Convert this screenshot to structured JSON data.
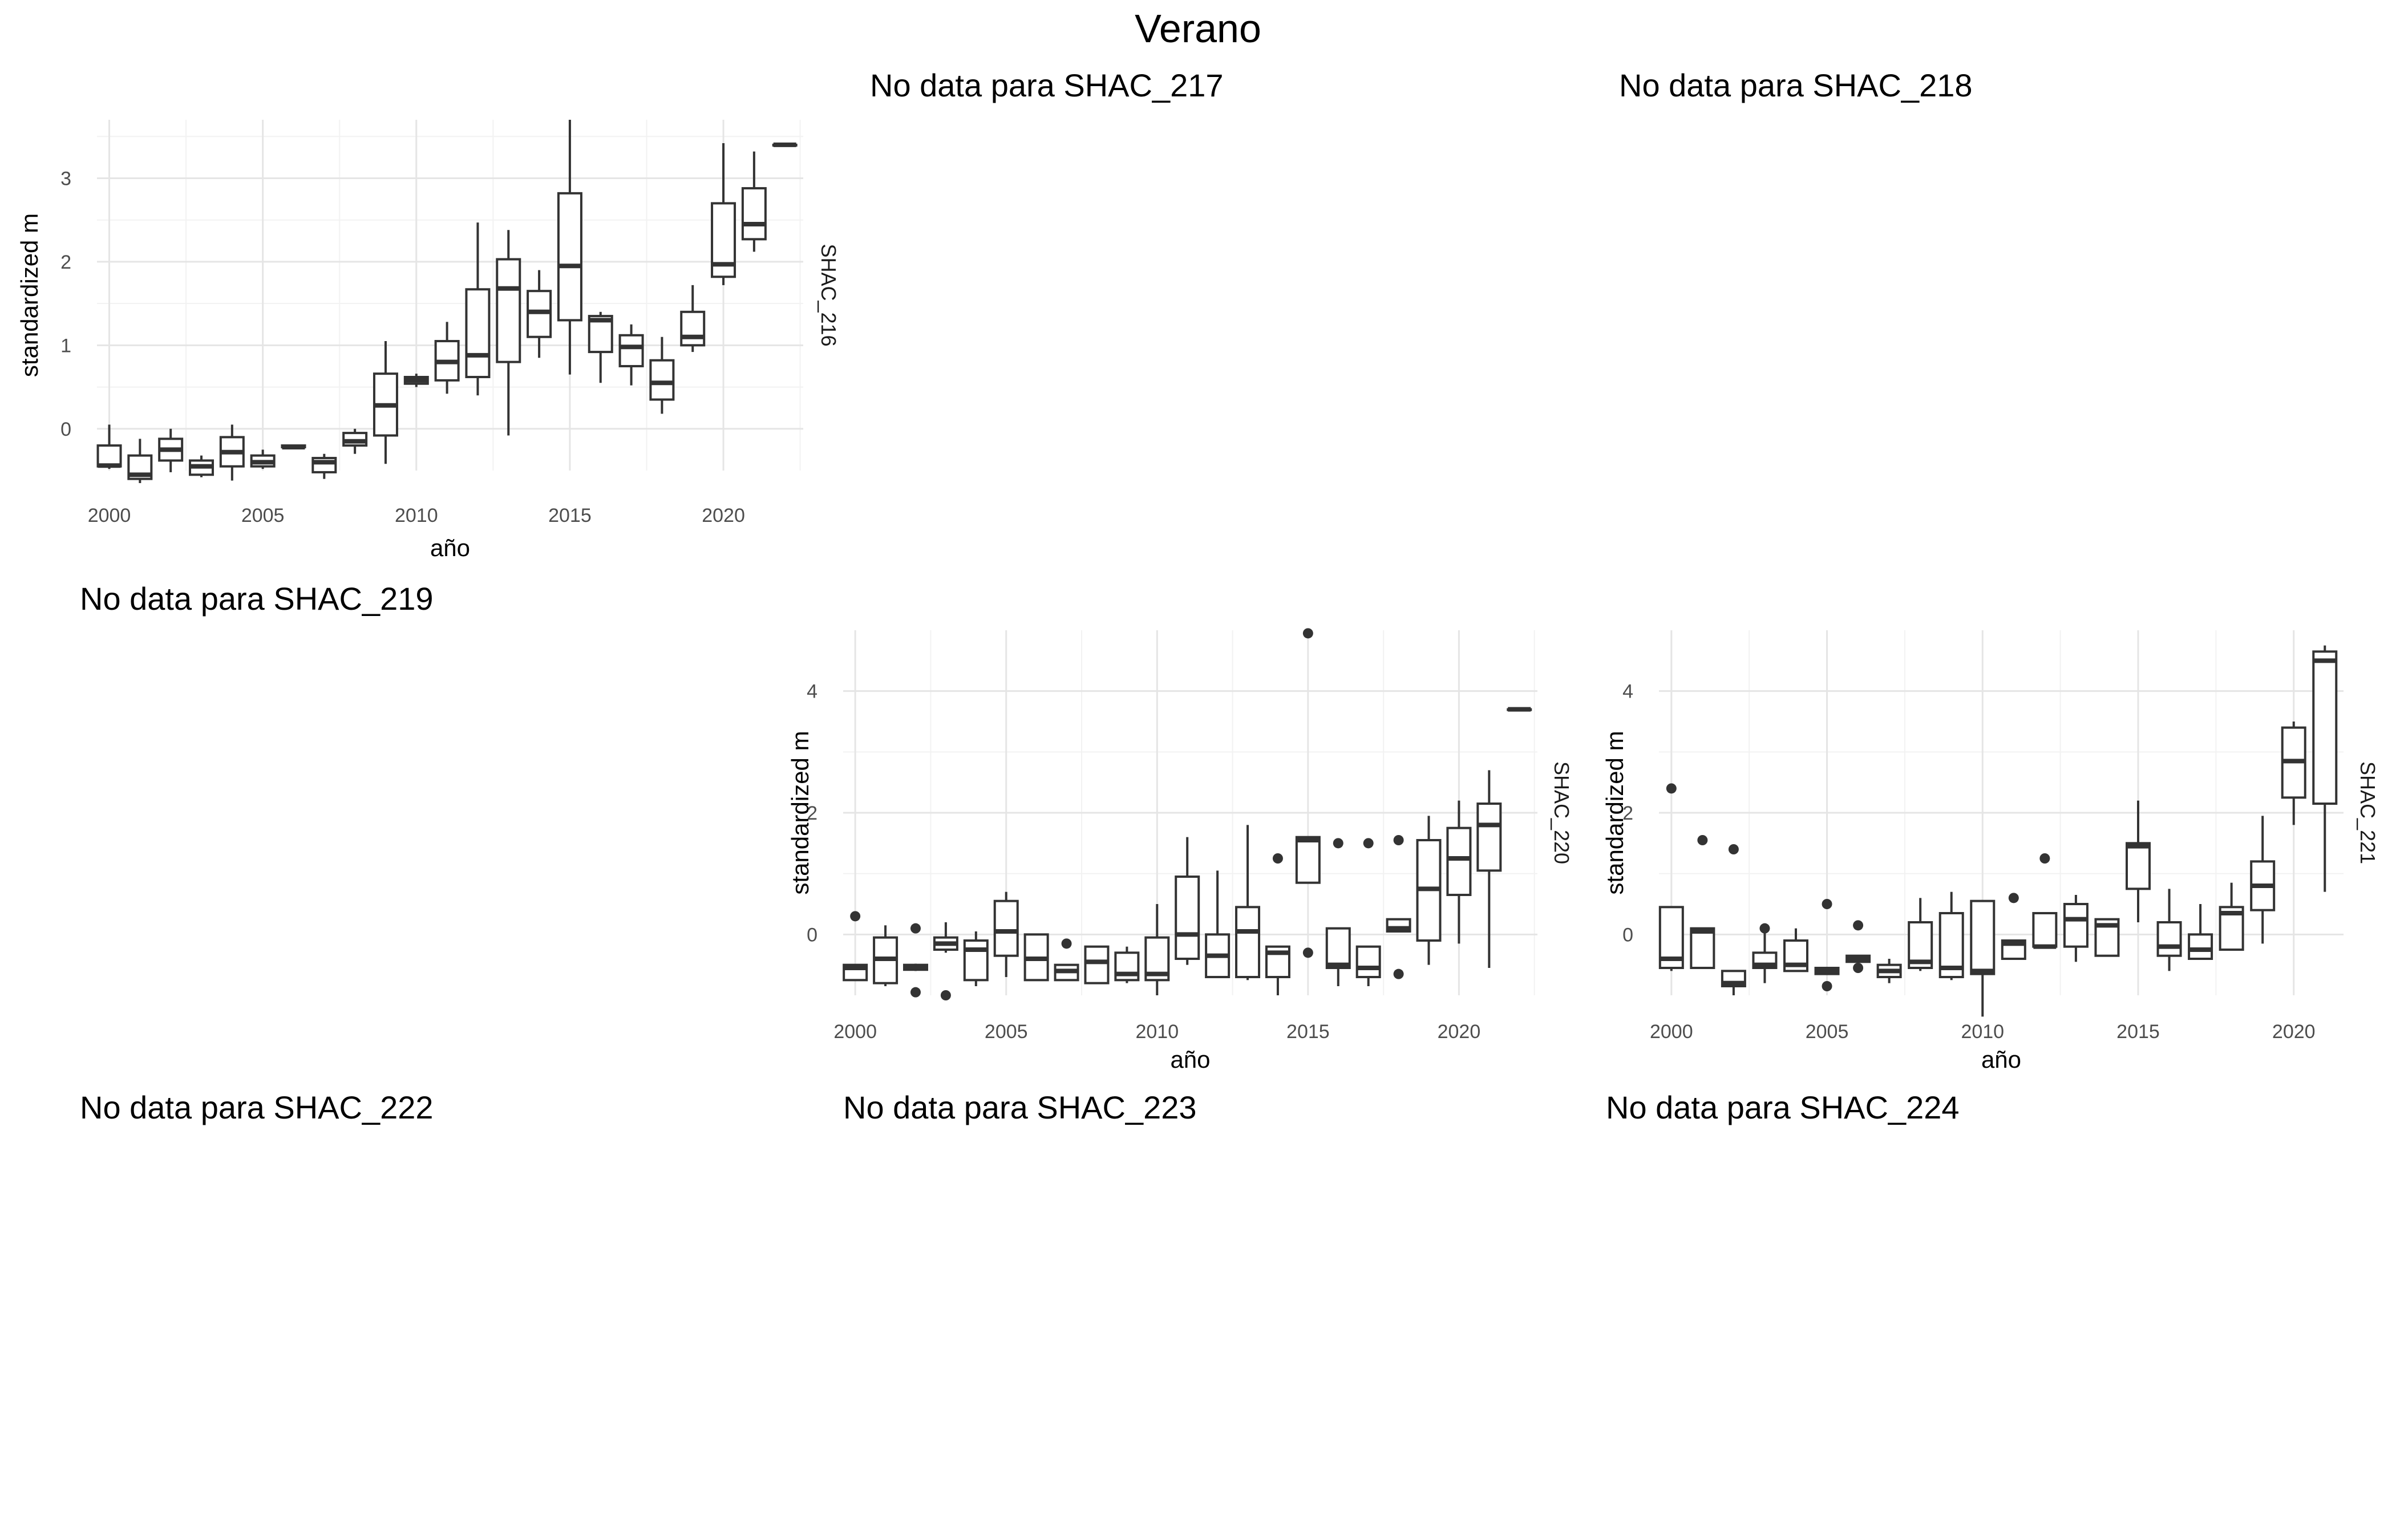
{
  "title": "Verano",
  "chart_data": [
    {
      "type": "boxplot",
      "strip": "SHAC_216",
      "xlabel": "año",
      "ylabel": "standardized m",
      "xlim": [
        1999.6,
        2022.6
      ],
      "ylim": [
        -0.5,
        3.7
      ],
      "xticks": [
        2000,
        2005,
        2010,
        2015,
        2020
      ],
      "yticks": [
        0,
        1,
        2,
        3
      ],
      "grid": true,
      "boxes": [
        {
          "x": 2000,
          "lo": -0.48,
          "q1": -0.45,
          "med": -0.44,
          "q3": -0.2,
          "hi": 0.05
        },
        {
          "x": 2001,
          "lo": -0.65,
          "q1": -0.6,
          "med": -0.55,
          "q3": -0.32,
          "hi": -0.12
        },
        {
          "x": 2002,
          "lo": -0.52,
          "q1": -0.38,
          "med": -0.25,
          "q3": -0.12,
          "hi": 0.0
        },
        {
          "x": 2003,
          "lo": -0.58,
          "q1": -0.55,
          "med": -0.45,
          "q3": -0.38,
          "hi": -0.32
        },
        {
          "x": 2004,
          "lo": -0.62,
          "q1": -0.45,
          "med": -0.28,
          "q3": -0.1,
          "hi": 0.05
        },
        {
          "x": 2005,
          "lo": -0.48,
          "q1": -0.45,
          "med": -0.4,
          "q3": -0.32,
          "hi": -0.25
        },
        {
          "x": 2006,
          "lo": -0.22,
          "q1": -0.22,
          "med": -0.22,
          "q3": -0.2,
          "hi": -0.2
        },
        {
          "x": 2007,
          "lo": -0.6,
          "q1": -0.52,
          "med": -0.4,
          "q3": -0.35,
          "hi": -0.3
        },
        {
          "x": 2008,
          "lo": -0.3,
          "q1": -0.2,
          "med": -0.15,
          "q3": -0.05,
          "hi": 0.0
        },
        {
          "x": 2009,
          "lo": -0.42,
          "q1": -0.08,
          "med": 0.28,
          "q3": 0.66,
          "hi": 1.05
        },
        {
          "x": 2010,
          "lo": 0.5,
          "q1": 0.54,
          "med": 0.58,
          "q3": 0.62,
          "hi": 0.66
        },
        {
          "x": 2011,
          "lo": 0.42,
          "q1": 0.58,
          "med": 0.8,
          "q3": 1.05,
          "hi": 1.28
        },
        {
          "x": 2012,
          "lo": 0.4,
          "q1": 0.62,
          "med": 0.88,
          "q3": 1.67,
          "hi": 2.47
        },
        {
          "x": 2013,
          "lo": -0.08,
          "q1": 0.8,
          "med": 1.68,
          "q3": 2.03,
          "hi": 2.38
        },
        {
          "x": 2014,
          "lo": 0.85,
          "q1": 1.1,
          "med": 1.4,
          "q3": 1.65,
          "hi": 1.9
        },
        {
          "x": 2015,
          "lo": 0.65,
          "q1": 1.3,
          "med": 1.95,
          "q3": 2.82,
          "hi": 3.7
        },
        {
          "x": 2016,
          "lo": 0.55,
          "q1": 0.92,
          "med": 1.3,
          "q3": 1.35,
          "hi": 1.4
        },
        {
          "x": 2017,
          "lo": 0.52,
          "q1": 0.75,
          "med": 0.98,
          "q3": 1.12,
          "hi": 1.25
        },
        {
          "x": 2018,
          "lo": 0.18,
          "q1": 0.35,
          "med": 0.55,
          "q3": 0.82,
          "hi": 1.1
        },
        {
          "x": 2019,
          "lo": 0.92,
          "q1": 1.0,
          "med": 1.1,
          "q3": 1.4,
          "hi": 1.72
        },
        {
          "x": 2020,
          "lo": 1.72,
          "q1": 1.82,
          "med": 1.97,
          "q3": 2.7,
          "hi": 3.42
        },
        {
          "x": 2021,
          "lo": 2.12,
          "q1": 2.27,
          "med": 2.45,
          "q3": 2.88,
          "hi": 3.32
        },
        {
          "x": 2022,
          "lo": 3.4,
          "q1": 3.4,
          "med": 3.4,
          "q3": 3.4,
          "hi": 3.4
        }
      ],
      "outliers": []
    },
    {
      "type": "boxplot",
      "strip": "SHAC_220",
      "xlabel": "año",
      "ylabel": "standardized m",
      "xlim": [
        1999.6,
        2022.6
      ],
      "ylim": [
        -1.0,
        5.0
      ],
      "xticks": [
        2000,
        2005,
        2010,
        2015,
        2020
      ],
      "yticks": [
        0,
        2,
        4
      ],
      "grid": true,
      "boxes": [
        {
          "x": 2000,
          "lo": -0.75,
          "q1": -0.75,
          "med": -0.55,
          "q3": -0.5,
          "hi": -0.5
        },
        {
          "x": 2001,
          "lo": -0.85,
          "q1": -0.8,
          "med": -0.4,
          "q3": -0.05,
          "hi": 0.15
        },
        {
          "x": 2002,
          "lo": -0.6,
          "q1": -0.58,
          "med": -0.55,
          "q3": -0.5,
          "hi": -0.48
        },
        {
          "x": 2003,
          "lo": -0.3,
          "q1": -0.25,
          "med": -0.15,
          "q3": -0.05,
          "hi": 0.2
        },
        {
          "x": 2004,
          "lo": -0.85,
          "q1": -0.75,
          "med": -0.25,
          "q3": -0.1,
          "hi": 0.05
        },
        {
          "x": 2005,
          "lo": -0.7,
          "q1": -0.35,
          "med": 0.05,
          "q3": 0.55,
          "hi": 0.7
        },
        {
          "x": 2006,
          "lo": -0.75,
          "q1": -0.75,
          "med": -0.4,
          "q3": 0.0,
          "hi": 0.0
        },
        {
          "x": 2007,
          "lo": -0.75,
          "q1": -0.75,
          "med": -0.6,
          "q3": -0.5,
          "hi": -0.5
        },
        {
          "x": 2008,
          "lo": -0.8,
          "q1": -0.8,
          "med": -0.45,
          "q3": -0.2,
          "hi": -0.2
        },
        {
          "x": 2009,
          "lo": -0.8,
          "q1": -0.75,
          "med": -0.65,
          "q3": -0.3,
          "hi": -0.2
        },
        {
          "x": 2010,
          "lo": -1.0,
          "q1": -0.75,
          "med": -0.65,
          "q3": -0.05,
          "hi": 0.5
        },
        {
          "x": 2011,
          "lo": -0.5,
          "q1": -0.4,
          "med": 0.0,
          "q3": 0.95,
          "hi": 1.6
        },
        {
          "x": 2012,
          "lo": -0.7,
          "q1": -0.7,
          "med": -0.35,
          "q3": 0.0,
          "hi": 1.05
        },
        {
          "x": 2013,
          "lo": -0.75,
          "q1": -0.7,
          "med": 0.05,
          "q3": 0.45,
          "hi": 1.8
        },
        {
          "x": 2014,
          "lo": -1.0,
          "q1": -0.7,
          "med": -0.3,
          "q3": -0.2,
          "hi": -0.2
        },
        {
          "x": 2015,
          "lo": 0.85,
          "q1": 0.85,
          "med": 1.55,
          "q3": 1.6,
          "hi": 1.6
        },
        {
          "x": 2016,
          "lo": -0.85,
          "q1": -0.55,
          "med": -0.5,
          "q3": 0.1,
          "hi": 0.1
        },
        {
          "x": 2017,
          "lo": -0.85,
          "q1": -0.7,
          "med": -0.55,
          "q3": -0.2,
          "hi": -0.2
        },
        {
          "x": 2018,
          "lo": 0.05,
          "q1": 0.05,
          "med": 0.1,
          "q3": 0.25,
          "hi": 0.25
        },
        {
          "x": 2019,
          "lo": -0.5,
          "q1": -0.1,
          "med": 0.75,
          "q3": 1.55,
          "hi": 1.95
        },
        {
          "x": 2020,
          "lo": -0.15,
          "q1": 0.65,
          "med": 1.25,
          "q3": 1.75,
          "hi": 2.2
        },
        {
          "x": 2021,
          "lo": -0.55,
          "q1": 1.05,
          "med": 1.8,
          "q3": 2.15,
          "hi": 2.7
        },
        {
          "x": 2022,
          "lo": 3.7,
          "q1": 3.7,
          "med": 3.7,
          "q3": 3.7,
          "hi": 3.7
        }
      ],
      "outliers": [
        {
          "x": 2000,
          "y": 0.3
        },
        {
          "x": 2002,
          "y": 0.1
        },
        {
          "x": 2002,
          "y": -0.95
        },
        {
          "x": 2003,
          "y": -1.0
        },
        {
          "x": 2007,
          "y": -0.15
        },
        {
          "x": 2014,
          "y": 1.25
        },
        {
          "x": 2015,
          "y": 4.95
        },
        {
          "x": 2015,
          "y": -0.3
        },
        {
          "x": 2016,
          "y": 1.5
        },
        {
          "x": 2017,
          "y": 1.5
        },
        {
          "x": 2018,
          "y": 1.55
        },
        {
          "x": 2018,
          "y": -0.65
        }
      ]
    },
    {
      "type": "boxplot",
      "strip": "SHAC_221",
      "xlabel": "año",
      "ylabel": "standardized m",
      "xlim": [
        1999.6,
        2021.6
      ],
      "ylim": [
        -1.0,
        5.0
      ],
      "xticks": [
        2000,
        2005,
        2010,
        2015,
        2020
      ],
      "yticks": [
        0,
        2,
        4
      ],
      "grid": true,
      "boxes": [
        {
          "x": 2000,
          "lo": -0.6,
          "q1": -0.55,
          "med": -0.4,
          "q3": 0.45,
          "hi": 0.45
        },
        {
          "x": 2001,
          "lo": -0.55,
          "q1": -0.55,
          "med": 0.05,
          "q3": 0.1,
          "hi": 0.1
        },
        {
          "x": 2002,
          "lo": -1.0,
          "q1": -0.85,
          "med": -0.8,
          "q3": -0.6,
          "hi": -0.6
        },
        {
          "x": 2003,
          "lo": -0.8,
          "q1": -0.55,
          "med": -0.5,
          "q3": -0.3,
          "hi": 0.05
        },
        {
          "x": 2004,
          "lo": -0.6,
          "q1": -0.6,
          "med": -0.5,
          "q3": -0.1,
          "hi": 0.1
        },
        {
          "x": 2005,
          "lo": -0.65,
          "q1": -0.65,
          "med": -0.6,
          "q3": -0.55,
          "hi": -0.55
        },
        {
          "x": 2006,
          "lo": -0.45,
          "q1": -0.45,
          "med": -0.4,
          "q3": -0.35,
          "hi": -0.35
        },
        {
          "x": 2007,
          "lo": -0.8,
          "q1": -0.7,
          "med": -0.6,
          "q3": -0.5,
          "hi": -0.4
        },
        {
          "x": 2008,
          "lo": -0.6,
          "q1": -0.55,
          "med": -0.45,
          "q3": 0.2,
          "hi": 0.6
        },
        {
          "x": 2009,
          "lo": -0.75,
          "q1": -0.7,
          "med": -0.55,
          "q3": 0.35,
          "hi": 0.7
        },
        {
          "x": 2010,
          "lo": -1.35,
          "q1": -0.65,
          "med": -0.6,
          "q3": 0.55,
          "hi": 0.55
        },
        {
          "x": 2011,
          "lo": -0.4,
          "q1": -0.4,
          "med": -0.15,
          "q3": -0.1,
          "hi": -0.1
        },
        {
          "x": 2012,
          "lo": -0.2,
          "q1": -0.2,
          "med": -0.2,
          "q3": 0.35,
          "hi": 0.35
        },
        {
          "x": 2013,
          "lo": -0.45,
          "q1": -0.2,
          "med": 0.25,
          "q3": 0.5,
          "hi": 0.65
        },
        {
          "x": 2014,
          "lo": -0.35,
          "q1": -0.35,
          "med": 0.15,
          "q3": 0.25,
          "hi": 0.25
        },
        {
          "x": 2015,
          "lo": 0.2,
          "q1": 0.75,
          "med": 1.45,
          "q3": 1.5,
          "hi": 2.2
        },
        {
          "x": 2016,
          "lo": -0.6,
          "q1": -0.35,
          "med": -0.2,
          "q3": 0.2,
          "hi": 0.75
        },
        {
          "x": 2017,
          "lo": -0.4,
          "q1": -0.4,
          "med": -0.25,
          "q3": 0.0,
          "hi": 0.5
        },
        {
          "x": 2018,
          "lo": -0.25,
          "q1": -0.25,
          "med": 0.35,
          "q3": 0.45,
          "hi": 0.85
        },
        {
          "x": 2019,
          "lo": -0.15,
          "q1": 0.4,
          "med": 0.8,
          "q3": 1.2,
          "hi": 1.95
        },
        {
          "x": 2020,
          "lo": 1.8,
          "q1": 2.25,
          "med": 2.85,
          "q3": 3.4,
          "hi": 3.5
        },
        {
          "x": 2021,
          "lo": 0.7,
          "q1": 2.15,
          "med": 4.5,
          "q3": 4.65,
          "hi": 4.75
        }
      ],
      "outliers": [
        {
          "x": 2000,
          "y": 2.4
        },
        {
          "x": 2001,
          "y": 1.55
        },
        {
          "x": 2002,
          "y": 1.4
        },
        {
          "x": 2003,
          "y": 0.1
        },
        {
          "x": 2005,
          "y": 0.5
        },
        {
          "x": 2005,
          "y": -0.85
        },
        {
          "x": 2006,
          "y": 0.15
        },
        {
          "x": 2006,
          "y": -0.55
        },
        {
          "x": 2011,
          "y": 0.6
        },
        {
          "x": 2012,
          "y": 1.25
        }
      ]
    }
  ],
  "empty_panels": [
    {
      "id": "SHAC_217",
      "text": "No data para SHAC_217"
    },
    {
      "id": "SHAC_218",
      "text": "No data para SHAC_218"
    },
    {
      "id": "SHAC_219",
      "text": "No data para SHAC_219"
    },
    {
      "id": "SHAC_222",
      "text": "No data para SHAC_222"
    },
    {
      "id": "SHAC_223",
      "text": "No data para SHAC_223"
    },
    {
      "id": "SHAC_224",
      "text": "No data para SHAC_224"
    }
  ]
}
